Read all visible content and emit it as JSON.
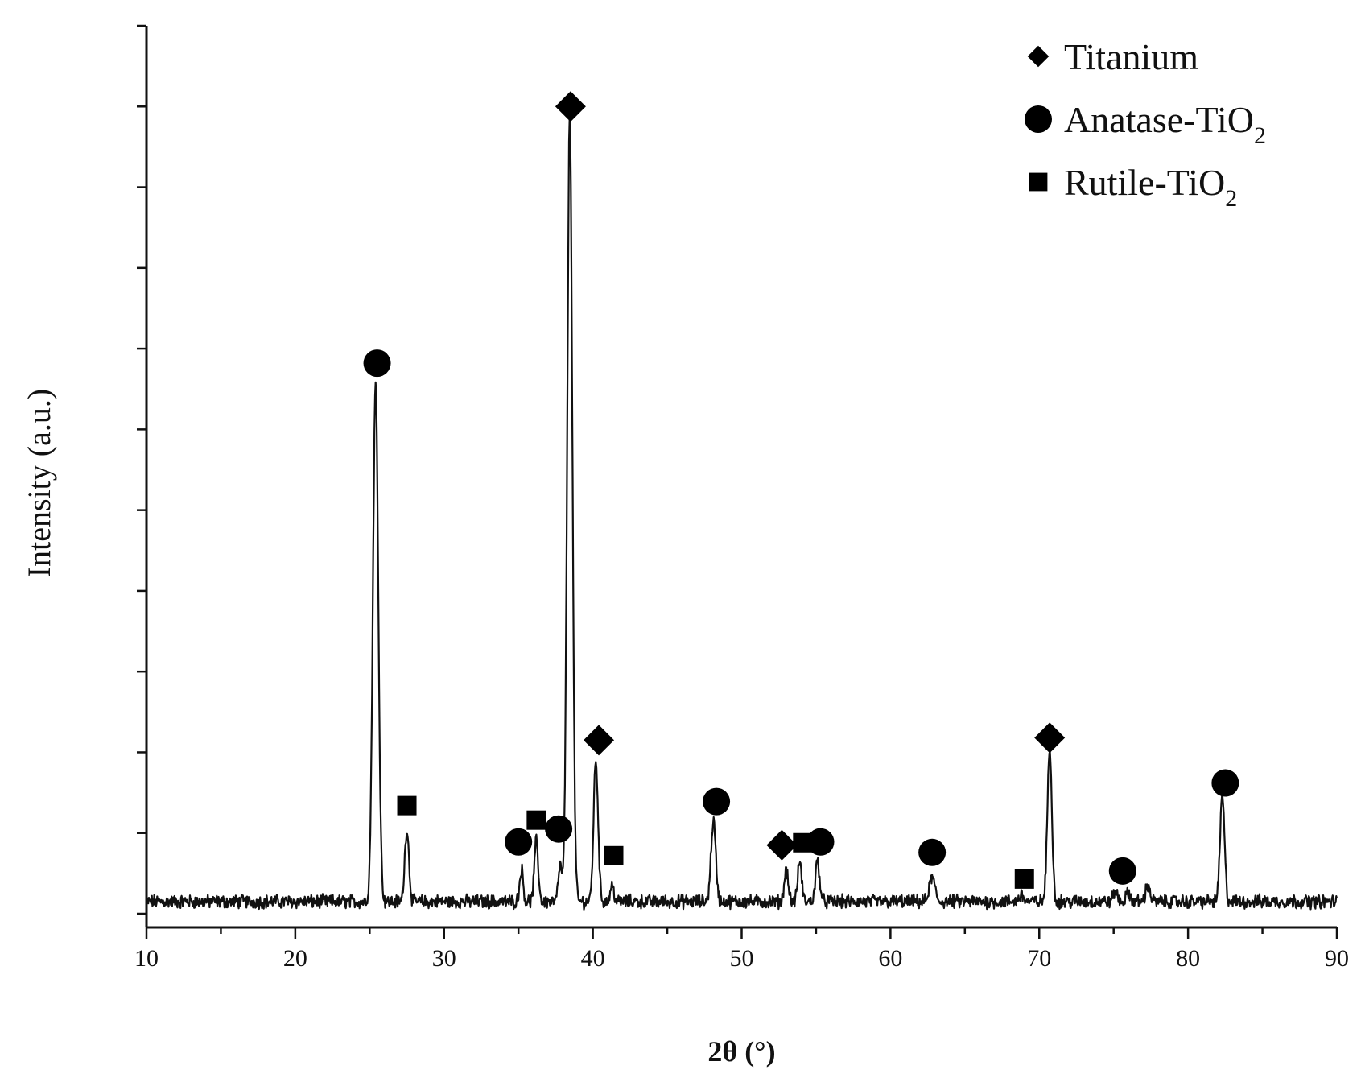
{
  "chart_data": {
    "type": "line",
    "xlabel": "2θ (°)",
    "ylabel": "Intensity (a.u.)",
    "xlim": [
      10,
      90
    ],
    "ylim": [
      0,
      1.1
    ],
    "x_ticks": [
      "10",
      "20",
      "30",
      "40",
      "50",
      "60",
      "70",
      "80",
      "90"
    ],
    "y_tick_labels_shown": false,
    "y_major_ticks": [
      0,
      0.1,
      0.2,
      0.3,
      0.4,
      0.5,
      0.6,
      0.7,
      0.8,
      0.9,
      1.0,
      1.1
    ],
    "baseline": 0.015,
    "color": "#111111",
    "peaks": [
      {
        "x": 25.4,
        "height": 0.64,
        "width": 0.18
      },
      {
        "x": 27.5,
        "height": 0.09,
        "width": 0.14
      },
      {
        "x": 35.2,
        "height": 0.04,
        "width": 0.12
      },
      {
        "x": 36.2,
        "height": 0.075,
        "width": 0.13
      },
      {
        "x": 37.8,
        "height": 0.045,
        "width": 0.12
      },
      {
        "x": 38.45,
        "height": 0.975,
        "width": 0.17
      },
      {
        "x": 40.2,
        "height": 0.175,
        "width": 0.15
      },
      {
        "x": 41.3,
        "height": 0.02,
        "width": 0.12
      },
      {
        "x": 48.1,
        "height": 0.1,
        "width": 0.16
      },
      {
        "x": 53.0,
        "height": 0.04,
        "width": 0.13
      },
      {
        "x": 53.9,
        "height": 0.05,
        "width": 0.13
      },
      {
        "x": 55.1,
        "height": 0.05,
        "width": 0.14
      },
      {
        "x": 62.8,
        "height": 0.03,
        "width": 0.18
      },
      {
        "x": 68.8,
        "height": 0.008,
        "width": 0.16
      },
      {
        "x": 70.7,
        "height": 0.19,
        "width": 0.15
      },
      {
        "x": 75.1,
        "height": 0.012,
        "width": 0.15
      },
      {
        "x": 76.0,
        "height": 0.01,
        "width": 0.15
      },
      {
        "x": 77.3,
        "height": 0.02,
        "width": 0.15
      },
      {
        "x": 82.3,
        "height": 0.13,
        "width": 0.15
      }
    ],
    "markers": [
      {
        "phase": "Titanium",
        "shape": "diamond",
        "x": 38.5,
        "y": 1.0
      },
      {
        "phase": "Titanium",
        "shape": "diamond",
        "x": 40.4,
        "y": 0.215
      },
      {
        "phase": "Titanium",
        "shape": "diamond",
        "x": 52.7,
        "y": 0.085
      },
      {
        "phase": "Titanium",
        "shape": "diamond",
        "x": 70.7,
        "y": 0.218
      },
      {
        "phase": "Anatase-TiO2",
        "shape": "circle",
        "x": 25.5,
        "y": 0.682
      },
      {
        "phase": "Anatase-TiO2",
        "shape": "circle",
        "x": 35.0,
        "y": 0.089
      },
      {
        "phase": "Anatase-TiO2",
        "shape": "circle",
        "x": 37.7,
        "y": 0.105
      },
      {
        "phase": "Anatase-TiO2",
        "shape": "circle",
        "x": 48.3,
        "y": 0.139
      },
      {
        "phase": "Anatase-TiO2",
        "shape": "circle",
        "x": 55.3,
        "y": 0.089
      },
      {
        "phase": "Anatase-TiO2",
        "shape": "circle",
        "x": 62.8,
        "y": 0.076
      },
      {
        "phase": "Anatase-TiO2",
        "shape": "circle",
        "x": 75.6,
        "y": 0.053
      },
      {
        "phase": "Anatase-TiO2",
        "shape": "circle",
        "x": 82.5,
        "y": 0.162
      },
      {
        "phase": "Rutile-TiO2",
        "shape": "square",
        "x": 27.5,
        "y": 0.134
      },
      {
        "phase": "Rutile-TiO2",
        "shape": "square",
        "x": 36.2,
        "y": 0.116
      },
      {
        "phase": "Rutile-TiO2",
        "shape": "square",
        "x": 41.4,
        "y": 0.072
      },
      {
        "phase": "Rutile-TiO2",
        "shape": "square",
        "x": 54.1,
        "y": 0.088
      },
      {
        "phase": "Rutile-TiO2",
        "shape": "square",
        "x": 69.0,
        "y": 0.043
      }
    ],
    "legend": {
      "position": "top-right",
      "entries": [
        {
          "shape": "diamond",
          "label": "Titanium",
          "subscript": ""
        },
        {
          "shape": "circle",
          "label": "Anatase-TiO",
          "subscript": "2"
        },
        {
          "shape": "square",
          "label": "Rutile-TiO",
          "subscript": "2"
        }
      ]
    },
    "grid": false
  }
}
